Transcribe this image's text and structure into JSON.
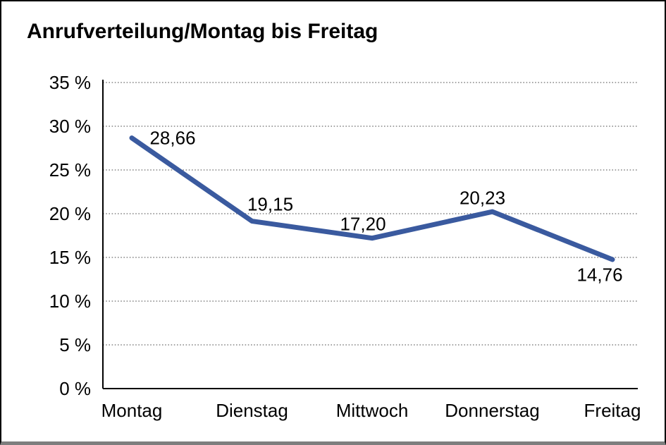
{
  "window": {
    "background": "#ffffff",
    "border_color": "#000000",
    "bottom_edge_color": "#7e7e7e"
  },
  "chart_data": {
    "type": "line",
    "title": "Anrufverteilung/Montag bis Freitag",
    "categories": [
      "Montag",
      "Dienstag",
      "Mittwoch",
      "Donnerstag",
      "Freitag"
    ],
    "values": [
      28.66,
      19.15,
      17.2,
      20.23,
      14.76
    ],
    "point_labels": [
      "28,66",
      "19,15",
      "17,20",
      "20,23",
      "14,76"
    ],
    "y_tick_labels": [
      "0 %",
      "5 %",
      "10 %",
      "15 %",
      "20 %",
      "25 %",
      "30 %",
      "35 %"
    ],
    "ylim": [
      0,
      35
    ],
    "y_step": 5,
    "xlabel": "",
    "ylabel": "",
    "legend": "none",
    "grid": "horizontal-dotted",
    "line_color": "#3a5a9f",
    "grid_color": "#6e6e6e",
    "axis_color": "#000000",
    "label_color": "#000000"
  }
}
